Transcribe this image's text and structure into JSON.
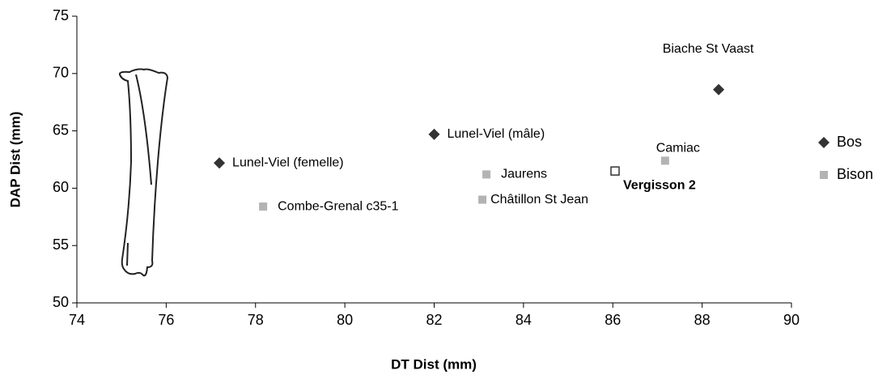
{
  "chart_data": {
    "type": "scatter",
    "x_label": "DT Dist (mm)",
    "y_label": "DAP Dist (mm)",
    "xlim": [
      74,
      90
    ],
    "xticks": [
      74,
      76,
      78,
      80,
      82,
      84,
      86,
      88,
      90
    ],
    "ylim": [
      50,
      75
    ],
    "yticks": [
      50,
      55,
      60,
      65,
      70,
      75
    ],
    "legend": "right",
    "series": [
      {
        "name": "Bos",
        "color": "#333333",
        "marker": "diamond",
        "x": [
          88.37,
          82.0,
          77.19
        ],
        "values": [
          68.6,
          64.7,
          62.2
        ],
        "labels": [
          "Biache St Vaast",
          "Lunel-Viel (mâle)",
          "Lunel-Viel (femelle)"
        ]
      },
      {
        "name": "Bison",
        "color": "#b3b3b3",
        "marker": "square",
        "x": [
          87.17,
          83.17,
          83.08,
          78.17
        ],
        "values": [
          62.4,
          61.2,
          59.0,
          58.4
        ],
        "labels": [
          "Camiac",
          "Jaurens",
          "Châtillon St Jean",
          "Combe-Grenal c35-1"
        ]
      }
    ],
    "highlight": {
      "label": "Vergisson 2",
      "x": 86.05,
      "y": 61.5,
      "color": "#333333"
    }
  }
}
